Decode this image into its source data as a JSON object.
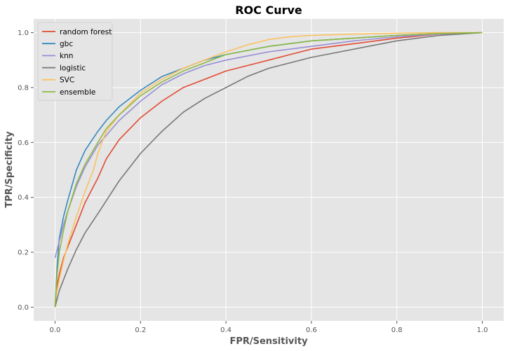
{
  "chart_data": {
    "type": "line",
    "title": "ROC Curve",
    "xlabel": "FPR/Sensitivity",
    "ylabel": "TPR/Specificity",
    "xlim": [
      -0.05,
      1.05
    ],
    "ylim": [
      -0.05,
      1.05
    ],
    "xticks": [
      "0.0",
      "0.2",
      "0.4",
      "0.6",
      "0.8",
      "1.0"
    ],
    "yticks": [
      "0.0",
      "0.2",
      "0.4",
      "0.6",
      "0.8",
      "1.0"
    ],
    "grid": true,
    "legend_position": "top-left",
    "background": "#e5e5e5",
    "series": [
      {
        "name": "random forest",
        "color": "#E24A33",
        "x": [
          0,
          0.005,
          0.01,
          0.02,
          0.03,
          0.05,
          0.07,
          0.1,
          0.12,
          0.15,
          0.2,
          0.25,
          0.3,
          0.35,
          0.4,
          0.45,
          0.5,
          0.55,
          0.6,
          0.7,
          0.8,
          0.9,
          1.0
        ],
        "y": [
          0,
          0.08,
          0.12,
          0.18,
          0.22,
          0.3,
          0.38,
          0.47,
          0.54,
          0.61,
          0.69,
          0.75,
          0.8,
          0.83,
          0.86,
          0.88,
          0.9,
          0.92,
          0.94,
          0.96,
          0.98,
          0.995,
          1.0
        ]
      },
      {
        "name": "gbc",
        "color": "#348ABD",
        "x": [
          0,
          0.005,
          0.01,
          0.02,
          0.03,
          0.05,
          0.07,
          0.1,
          0.12,
          0.15,
          0.2,
          0.25,
          0.3,
          0.35,
          0.4,
          0.5,
          0.6,
          0.7,
          0.8,
          0.9,
          1.0
        ],
        "y": [
          0,
          0.15,
          0.25,
          0.33,
          0.39,
          0.5,
          0.57,
          0.64,
          0.68,
          0.73,
          0.79,
          0.84,
          0.87,
          0.9,
          0.92,
          0.95,
          0.97,
          0.98,
          0.99,
          0.997,
          1.0
        ]
      },
      {
        "name": "knn",
        "color": "#988ED5",
        "x": [
          0,
          0.005,
          0.01,
          0.02,
          0.03,
          0.05,
          0.07,
          0.1,
          0.15,
          0.2,
          0.25,
          0.3,
          0.35,
          0.4,
          0.5,
          0.6,
          0.7,
          0.8,
          0.9,
          1.0
        ],
        "y": [
          0.18,
          0.21,
          0.24,
          0.3,
          0.35,
          0.44,
          0.51,
          0.59,
          0.68,
          0.75,
          0.81,
          0.85,
          0.88,
          0.9,
          0.93,
          0.95,
          0.97,
          0.985,
          0.995,
          1.0
        ]
      },
      {
        "name": "logistic",
        "color": "#777777",
        "x": [
          0,
          0.01,
          0.02,
          0.03,
          0.05,
          0.07,
          0.1,
          0.15,
          0.2,
          0.25,
          0.3,
          0.35,
          0.4,
          0.45,
          0.5,
          0.6,
          0.7,
          0.8,
          0.9,
          1.0
        ],
        "y": [
          0,
          0.06,
          0.1,
          0.14,
          0.21,
          0.27,
          0.34,
          0.46,
          0.56,
          0.64,
          0.71,
          0.76,
          0.8,
          0.84,
          0.87,
          0.91,
          0.94,
          0.97,
          0.99,
          1.0
        ]
      },
      {
        "name": "SVC",
        "color": "#FBC15E",
        "x": [
          0,
          0.01,
          0.02,
          0.03,
          0.05,
          0.07,
          0.09,
          0.1,
          0.12,
          0.15,
          0.2,
          0.25,
          0.3,
          0.35,
          0.4,
          0.45,
          0.5,
          0.55,
          0.6,
          0.7,
          0.8,
          0.9,
          1.0
        ],
        "y": [
          0.02,
          0.1,
          0.17,
          0.23,
          0.33,
          0.42,
          0.5,
          0.56,
          0.64,
          0.7,
          0.78,
          0.83,
          0.87,
          0.9,
          0.93,
          0.955,
          0.975,
          0.985,
          0.99,
          0.995,
          0.998,
          1.0,
          1.0
        ]
      },
      {
        "name": "ensemble",
        "color": "#8EBA42",
        "x": [
          0,
          0.005,
          0.01,
          0.02,
          0.03,
          0.05,
          0.07,
          0.1,
          0.12,
          0.15,
          0.2,
          0.25,
          0.3,
          0.35,
          0.4,
          0.5,
          0.6,
          0.7,
          0.8,
          0.9,
          1.0
        ],
        "y": [
          0,
          0.12,
          0.2,
          0.28,
          0.35,
          0.45,
          0.52,
          0.6,
          0.65,
          0.7,
          0.77,
          0.82,
          0.86,
          0.89,
          0.92,
          0.95,
          0.97,
          0.98,
          0.99,
          0.997,
          1.0
        ]
      }
    ]
  }
}
